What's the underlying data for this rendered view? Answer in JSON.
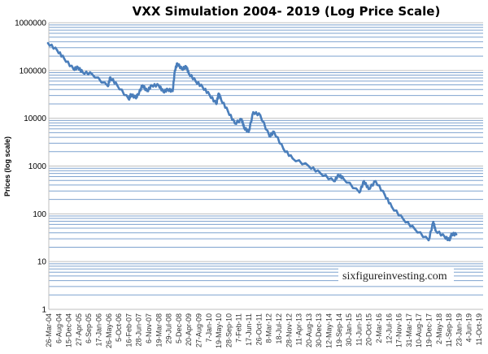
{
  "chart_data": {
    "type": "line",
    "title": "VXX Simulation 2004- 2019 (Log Price Scale)",
    "xlabel": "",
    "ylabel": "Prices (log scale)",
    "y_scale": "log",
    "ylim": [
      1,
      1000000
    ],
    "y_ticks": [
      "1",
      "10",
      "100",
      "1000",
      "10000",
      "100000",
      "1000000"
    ],
    "xlim": [
      "2004-03-26",
      "2019-10-11"
    ],
    "x_ticks": [
      "26-Mar-04",
      "6-Aug-04",
      "15-Dec-04",
      "27-Apr-05",
      "6-Sep-05",
      "17-Jan-06",
      "26-May-06",
      "5-Oct-06",
      "16-Feb-07",
      "28-Jun-07",
      "6-Nov-07",
      "19-Mar-08",
      "29-Jul-08",
      "5-Dec-08",
      "20-Apr-09",
      "27-Aug-09",
      "7-Jan-10",
      "19-May-10",
      "28-Sep-10",
      "7-Feb-11",
      "17-Jun-11",
      "26-Oct-11",
      "8-Mar-12",
      "18-Jul-12",
      "28-Nov-12",
      "11-Apr-13",
      "20-Aug-13",
      "30-Dec-13",
      "12-May-14",
      "19-Sep-14",
      "30-Jan-15",
      "11-Jun-15",
      "20-Oct-15",
      "2-Mar-16",
      "12-Jul-16",
      "17-Nov-16",
      "31-Mar-17",
      "10-Aug-17",
      "19-Dec-17",
      "2-May-18",
      "11-Sep-18",
      "23-Jan-19",
      "4-Jun-19",
      "11-Oct-19"
    ],
    "grid": {
      "horizontal_major": true,
      "horizontal_minor": true,
      "vertical": false
    },
    "legend": "none",
    "colors": {
      "series": "#4a7ebb",
      "major_grid": "#c0c0c0",
      "minor_grid": "#7fa3cf"
    },
    "annotation": "sixfigureinvesting.com",
    "series": [
      {
        "x": [
          "2004-03",
          "2004-07",
          "2004-10",
          "2005-02",
          "2005-04",
          "2005-06",
          "2005-10",
          "2006-05",
          "2006-06",
          "2006-09",
          "2007-02",
          "2007-03",
          "2007-05",
          "2007-06",
          "2007-08",
          "2007-10",
          "2007-12",
          "2008-03",
          "2008-05",
          "2008-07",
          "2008-09",
          "2008-10",
          "2008-11",
          "2009-01",
          "2009-03",
          "2009-04",
          "2009-07",
          "2009-10",
          "2010-01",
          "2010-04",
          "2010-05",
          "2010-06",
          "2010-09",
          "2010-12",
          "2011-03",
          "2011-04",
          "2011-06",
          "2011-08",
          "2011-11",
          "2012-03",
          "2012-05",
          "2012-09",
          "2013-01",
          "2013-08",
          "2014-01",
          "2014-07",
          "2014-09",
          "2014-11",
          "2015-06",
          "2015-08",
          "2015-10",
          "2016-01",
          "2016-05",
          "2016-08",
          "2017-01",
          "2017-06",
          "2017-12",
          "2018-02",
          "2018-03",
          "2018-07",
          "2018-09",
          "2018-10",
          "2018-12"
        ],
        "y": [
          376000,
          264000,
          178000,
          107000,
          116000,
          92000,
          85000,
          47000,
          72000,
          49000,
          25000,
          31500,
          27000,
          31000,
          49000,
          37000,
          49000,
          49000,
          36000,
          40000,
          37000,
          100000,
          141000,
          107000,
          120000,
          88000,
          60000,
          45000,
          31000,
          20000,
          33000,
          25000,
          14000,
          7800,
          9500,
          6400,
          5200,
          13400,
          11600,
          4200,
          5200,
          2300,
          1440,
          1000,
          714,
          483,
          650,
          550,
          280,
          483,
          330,
          483,
          250,
          140,
          77,
          48,
          28,
          68,
          45,
          33,
          28,
          38,
          37
        ]
      }
    ]
  }
}
